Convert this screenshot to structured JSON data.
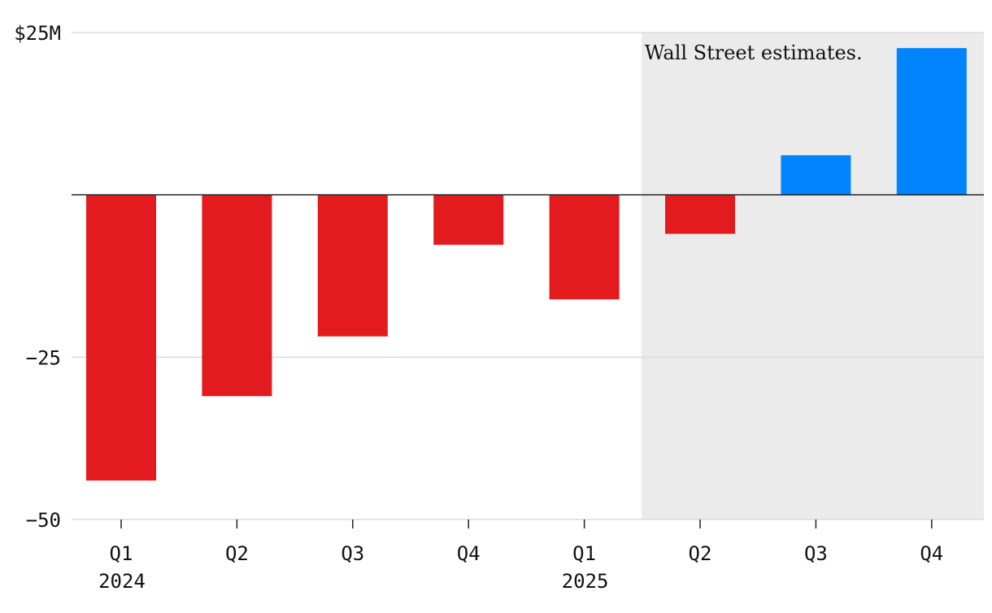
{
  "chart_data": {
    "type": "bar",
    "title": "",
    "xlabel": "",
    "ylabel": "",
    "ylim": [
      -50,
      25
    ],
    "y_ticks": [
      {
        "value": 25,
        "label": "$25M"
      },
      {
        "value": -25,
        "label": "−25"
      },
      {
        "value": -50,
        "label": "−50"
      }
    ],
    "categories": [
      "Q1",
      "Q2",
      "Q3",
      "Q4",
      "Q1",
      "Q2",
      "Q3",
      "Q4"
    ],
    "year_labels": [
      {
        "index": 0,
        "label": "2024"
      },
      {
        "index": 4,
        "label": "2025"
      }
    ],
    "values": [
      -44,
      -31,
      -21.8,
      -7.7,
      -16.1,
      -6,
      6.1,
      22.6
    ],
    "estimate_region": {
      "start_index": 5,
      "label": "Wall Street estimates."
    }
  },
  "colors": {
    "negative": "#e31b1f",
    "positive": "#0284fe",
    "estimate_bg": "#ebebeb",
    "grid": "#dcdcdc",
    "zero_line": "#222222"
  }
}
